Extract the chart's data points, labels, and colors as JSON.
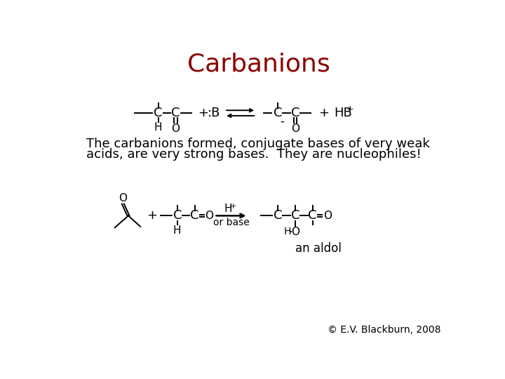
{
  "title": "Carbanions",
  "title_color": "#8B0000",
  "title_fontsize": 26,
  "body_text_line1": "The carbanions formed, conjugate bases of very weak",
  "body_text_line2": "acids, are very strong bases.  They are nucleophiles!",
  "body_fontsize": 13,
  "copyright": "© E.V. Blackburn, 2008",
  "copyright_fontsize": 10,
  "background_color": "#ffffff",
  "text_color": "#000000"
}
